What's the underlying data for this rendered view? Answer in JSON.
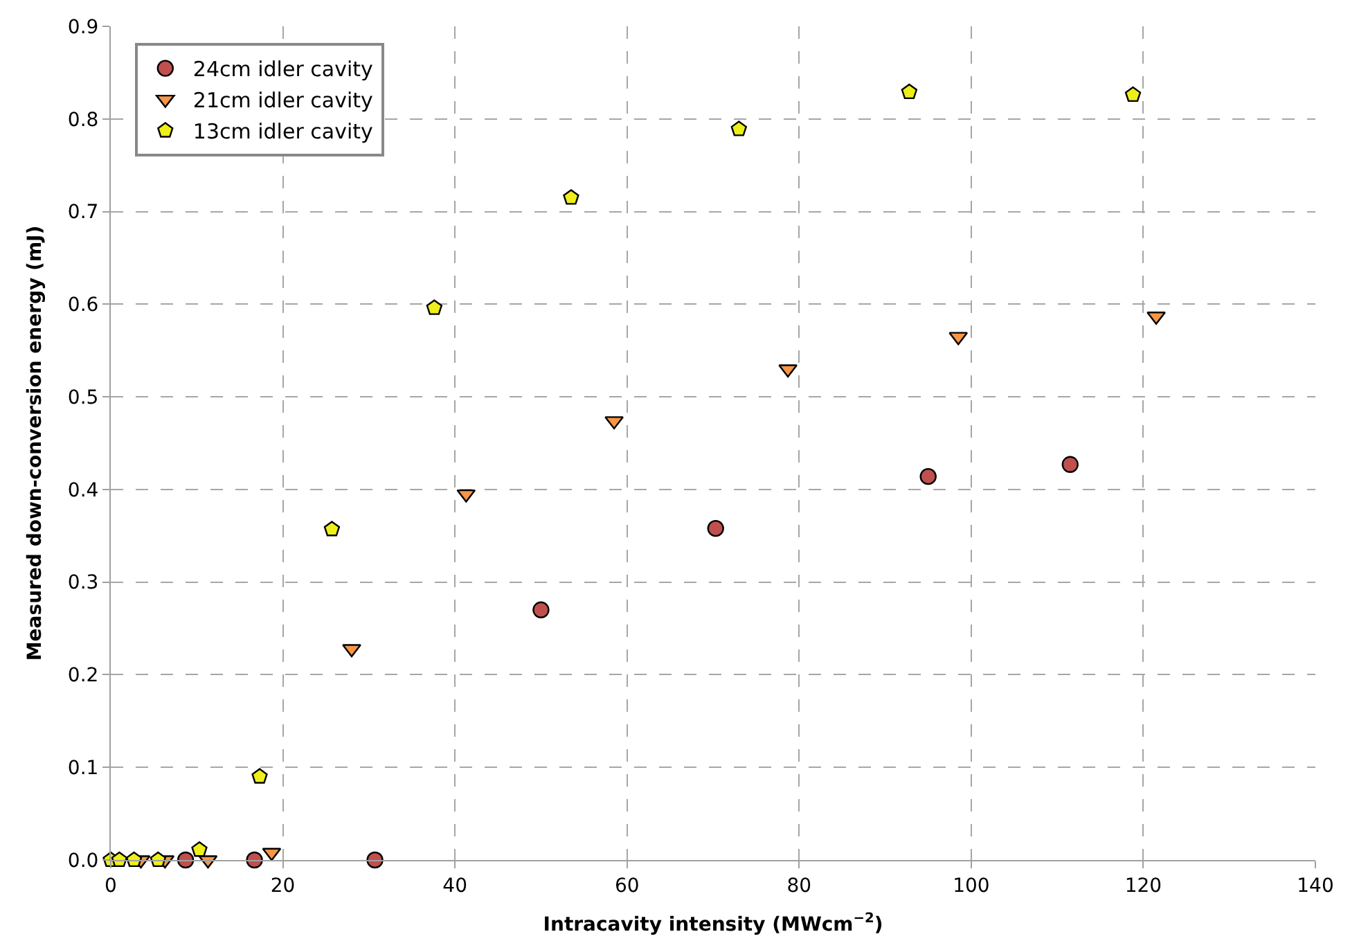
{
  "chart_data": {
    "type": "scatter",
    "xlabel": "Intracavity intensity (MWcm$^{−2}$)",
    "ylabel": "Measured down-conversion energy (mJ)",
    "xlim": [
      0,
      140
    ],
    "xticks": [
      0,
      20,
      40,
      60,
      80,
      100,
      120,
      140
    ],
    "ylim": [
      0,
      0.9
    ],
    "yticks": [
      {
        "value": 0,
        "label": "0.0"
      },
      0.1,
      0.2,
      0.3,
      0.4,
      0.5,
      0.6,
      0.7,
      0.8,
      0.9
    ],
    "grid": true,
    "legend": "top left",
    "series": [
      {
        "name": "24cm idler cavity",
        "color": "#c0504d",
        "marker": "circle",
        "x": [
          8.7,
          16.7,
          30.7,
          50,
          70.3,
          95,
          111.5
        ],
        "values": [
          0,
          0,
          0,
          0.27,
          0.358,
          0.414,
          0.427
        ]
      },
      {
        "name": "21cm idler cavity",
        "color": "#f79646",
        "x": [
          3.5,
          6.3,
          11.3,
          18.7,
          28,
          41.3,
          58.5,
          78.7,
          98.5,
          121.5
        ],
        "values": [
          0,
          0,
          0,
          0.008,
          0.228,
          0.395,
          0.474,
          0.53,
          0.565,
          0.587
        ]
      },
      {
        "name": "13cm idler cavity",
        "color": "#eeee1a",
        "x": [
          0,
          1,
          2.7,
          5.5,
          10.3,
          17.3,
          25.7,
          37.6,
          53.5,
          73,
          92.8,
          118.8
        ],
        "values": [
          0,
          0,
          0,
          0,
          0.011,
          0.09,
          0.357,
          0.596,
          0.715,
          0.789,
          0.829,
          0.826
        ]
      }
    ]
  }
}
